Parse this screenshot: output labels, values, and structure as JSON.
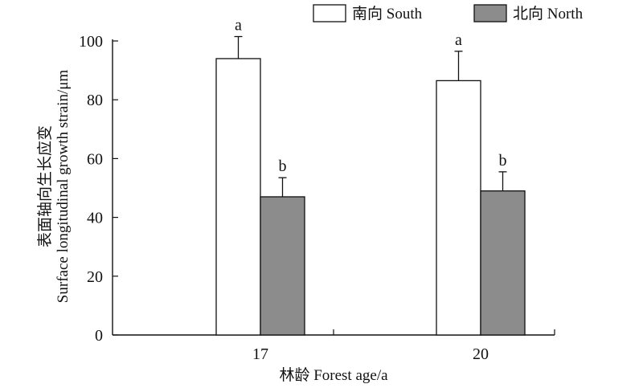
{
  "chart_data": {
    "type": "bar",
    "xlabel": "林龄 Forest age/a",
    "ylabel_line1": "表面轴向生长应变",
    "ylabel_line2": "Surface longitudinal growth strain/μm",
    "ylim": [
      0,
      100
    ],
    "yticks": [
      0,
      20,
      40,
      60,
      80,
      100
    ],
    "categories": [
      "17",
      "20"
    ],
    "legend_position": "top-right",
    "grid": false,
    "series": [
      {
        "name": "南向 South",
        "color": "#ffffff",
        "values": [
          94,
          86.5
        ],
        "errors": [
          7.5,
          10
        ],
        "letters": [
          "a",
          "a"
        ]
      },
      {
        "name": "北向 North",
        "color": "#8c8c8c",
        "values": [
          47,
          49
        ],
        "errors": [
          6.5,
          6.5
        ],
        "letters": [
          "b",
          "b"
        ]
      }
    ]
  }
}
